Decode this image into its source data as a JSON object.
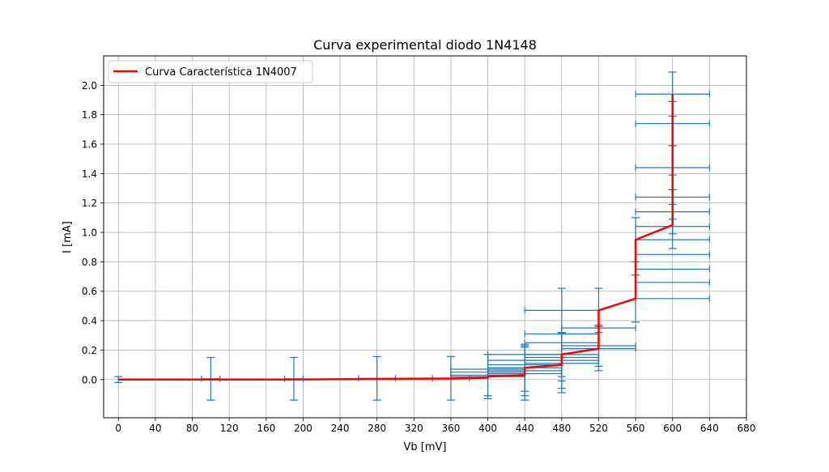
{
  "chart_data": {
    "type": "line",
    "title": "Curva experimental diodo 1N4148",
    "xlabel": "Vb [mV]",
    "ylabel": "I [mA]",
    "xlim": [
      -16,
      680
    ],
    "ylim": [
      -0.26,
      2.2
    ],
    "xticks": [
      0,
      40,
      80,
      120,
      160,
      200,
      240,
      280,
      320,
      360,
      400,
      440,
      480,
      520,
      560,
      600,
      640,
      680
    ],
    "yticks": [
      0.0,
      0.2,
      0.4,
      0.6,
      0.8,
      1.0,
      1.2,
      1.4,
      1.6,
      1.8,
      2.0
    ],
    "ytick_labels": [
      "0.0",
      "0.2",
      "0.4",
      "0.6",
      "0.8",
      "1.0",
      "1.2",
      "1.4",
      "1.6",
      "1.8",
      "2.0"
    ],
    "grid": true,
    "legend_position": "upper left",
    "series": [
      {
        "name": "Curva Característica 1N4007",
        "color": "#ff0000",
        "style": "line",
        "x": [
          0,
          100,
          190,
          280,
          360,
          400,
          400,
          440,
          440,
          480,
          480,
          520,
          520,
          560,
          560,
          600,
          600,
          600
        ],
        "y": [
          0.0,
          0.0,
          0.0,
          0.004,
          0.007,
          0.012,
          0.02,
          0.03,
          0.08,
          0.1,
          0.17,
          0.21,
          0.47,
          0.55,
          0.95,
          1.05,
          1.7,
          1.94
        ]
      }
    ],
    "error_bars": {
      "color": "#1f77b4",
      "points": [
        {
          "x": 0,
          "y": 0.0,
          "xerr": 0,
          "yerr": 0.02
        },
        {
          "x": 100,
          "y": 0.005,
          "xerr": 10,
          "yerr": 0.145
        },
        {
          "x": 190,
          "y": 0.005,
          "xerr": 10,
          "yerr": 0.145
        },
        {
          "x": 280,
          "y": 0.008,
          "xerr": 20,
          "yerr": 0.148
        },
        {
          "x": 360,
          "y": 0.008,
          "xerr": 20,
          "yerr": 0.148
        },
        {
          "x": 400,
          "y": 0.02,
          "xerr": 40,
          "yerr": 0.15
        },
        {
          "x": 400,
          "y": 0.03,
          "xerr": 40,
          "yerr": 0.14
        },
        {
          "x": 400,
          "y": 0.05,
          "xerr": 40,
          "yerr": 0.0
        },
        {
          "x": 400,
          "y": 0.07,
          "xerr": 40,
          "yerr": 0.0
        },
        {
          "x": 440,
          "y": 0.04,
          "xerr": 40,
          "yerr": 0.18
        },
        {
          "x": 440,
          "y": 0.06,
          "xerr": 40,
          "yerr": 0.17
        },
        {
          "x": 440,
          "y": 0.08,
          "xerr": 40,
          "yerr": 0.16
        },
        {
          "x": 440,
          "y": 0.1,
          "xerr": 40,
          "yerr": 0.0
        },
        {
          "x": 440,
          "y": 0.13,
          "xerr": 40,
          "yerr": 0.0
        },
        {
          "x": 440,
          "y": 0.17,
          "xerr": 40,
          "yerr": 0.0
        },
        {
          "x": 480,
          "y": 0.11,
          "xerr": 40,
          "yerr": 0.2
        },
        {
          "x": 480,
          "y": 0.13,
          "xerr": 40,
          "yerr": 0.19
        },
        {
          "x": 480,
          "y": 0.15,
          "xerr": 40,
          "yerr": 0.16
        },
        {
          "x": 480,
          "y": 0.17,
          "xerr": 40,
          "yerr": 0.15
        },
        {
          "x": 480,
          "y": 0.25,
          "xerr": 40,
          "yerr": 0.0
        },
        {
          "x": 480,
          "y": 0.31,
          "xerr": 40,
          "yerr": 0.0
        },
        {
          "x": 520,
          "y": 0.21,
          "xerr": 40,
          "yerr": 0.15
        },
        {
          "x": 520,
          "y": 0.23,
          "xerr": 40,
          "yerr": 0.14
        },
        {
          "x": 520,
          "y": 0.35,
          "xerr": 40,
          "yerr": 0.0
        },
        {
          "x": 480,
          "y": 0.47,
          "xerr": 40,
          "yerr": 0.15
        },
        {
          "x": 520,
          "y": 0.47,
          "xerr": 0,
          "yerr": 0.15
        },
        {
          "x": 600,
          "y": 0.55,
          "xerr": 40,
          "yerr": 0.0
        },
        {
          "x": 560,
          "y": 0.55,
          "xerr": 0,
          "yerr": 0.16
        },
        {
          "x": 600,
          "y": 0.66,
          "xerr": 40,
          "yerr": 0.0
        },
        {
          "x": 600,
          "y": 0.75,
          "xerr": 40,
          "yerr": 0.0
        },
        {
          "x": 600,
          "y": 0.85,
          "xerr": 40,
          "yerr": 0.0
        },
        {
          "x": 600,
          "y": 0.95,
          "xerr": 40,
          "yerr": 0.0
        },
        {
          "x": 560,
          "y": 0.95,
          "xerr": 0,
          "yerr": 0.15
        },
        {
          "x": 600,
          "y": 1.04,
          "xerr": 40,
          "yerr": 0.15
        },
        {
          "x": 600,
          "y": 1.14,
          "xerr": 40,
          "yerr": 0.15
        },
        {
          "x": 600,
          "y": 1.24,
          "xerr": 40,
          "yerr": 0.15
        },
        {
          "x": 600,
          "y": 1.44,
          "xerr": 40,
          "yerr": 0.15
        },
        {
          "x": 600,
          "y": 1.74,
          "xerr": 40,
          "yerr": 0.15
        },
        {
          "x": 600,
          "y": 1.94,
          "xerr": 40,
          "yerr": 0.15
        }
      ]
    }
  }
}
